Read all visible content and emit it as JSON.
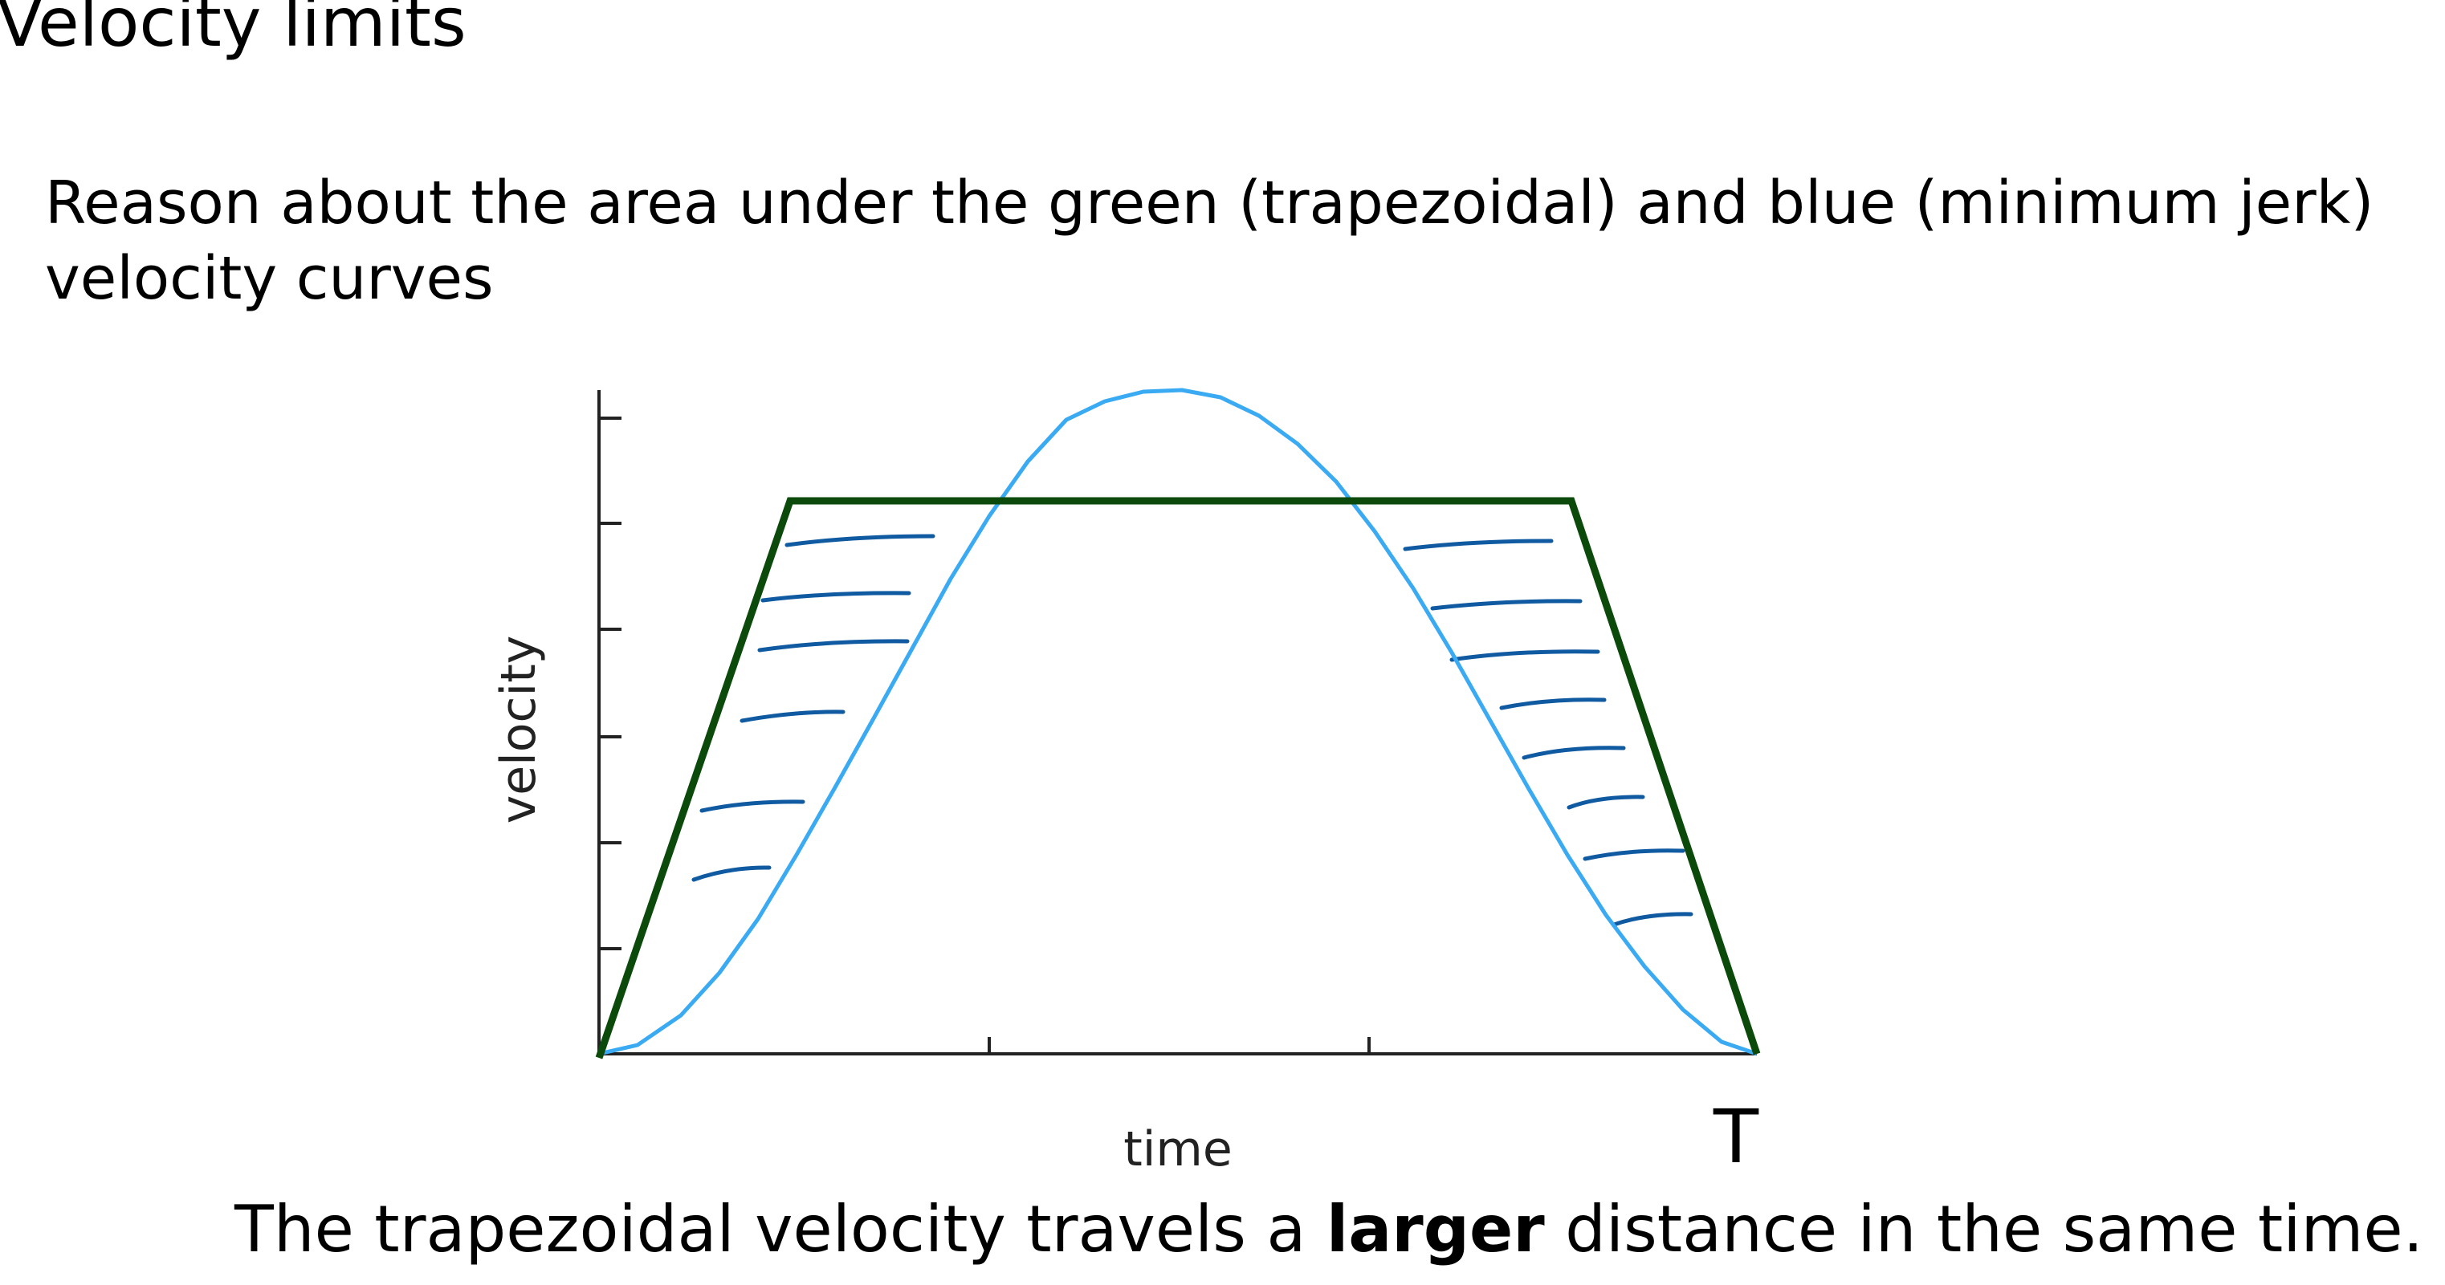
{
  "slide": {
    "title": "Velocity limits",
    "prompt": "Reason about the area under the green (trapezoidal) and blue (minimum jerk) velocity curves"
  },
  "diagram": {
    "ylabel": "velocity",
    "xlabel": "time",
    "end_marker": "T",
    "trapezoid_color": "#0b4a0b",
    "min_jerk_color": "#3aaaf2",
    "hatch_color": "#0f5aa0"
  },
  "conclusion": {
    "before": "The trapezoidal velocity travels a ",
    "emphasis": "larger",
    "after": " distance in the same time."
  }
}
